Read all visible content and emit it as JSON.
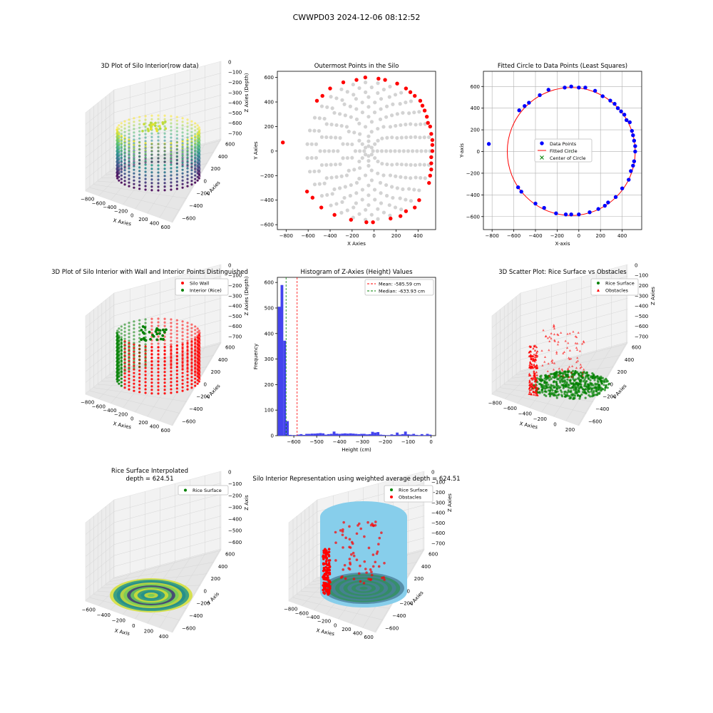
{
  "suptitle": "CWWPD03 2024-12-06 08:12:52",
  "panels": {
    "p1": {
      "title": "3D Plot of Silo Interior(row data)",
      "xlabel": "X Axies",
      "ylabel": "Y Axies",
      "zlabel": "Z Axies (Depth)",
      "xticks": [
        "−800",
        "−600",
        "−400",
        "−200",
        "0",
        "200",
        "400",
        "600"
      ],
      "yticks": [
        "600",
        "400",
        "200",
        "0",
        "−200",
        "−400",
        "−600"
      ],
      "zticks": [
        "0",
        "−100",
        "−200",
        "−300",
        "−400",
        "−500",
        "−600",
        "−700"
      ]
    },
    "p2": {
      "title": "Outermost Points in the Silo",
      "xlabel": "X Axies",
      "ylabel": "Y Axies",
      "xticks": [
        "−800",
        "−600",
        "−400",
        "−200",
        "0",
        "200",
        "400"
      ],
      "yticks": [
        "600",
        "400",
        "200",
        "0",
        "−200",
        "−400",
        "−600"
      ]
    },
    "p3": {
      "title": "Fitted Circle to Data Points (Least Squares)",
      "xlabel": "X-axis",
      "ylabel": "Y-axis",
      "xticks": [
        "−800",
        "−600",
        "−400",
        "−200",
        "0",
        "200",
        "400"
      ],
      "yticks": [
        "600",
        "400",
        "200",
        "0",
        "−200",
        "−400",
        "−600"
      ],
      "legend": [
        "Data Points",
        "Fitted Circle",
        "Center of Circle"
      ]
    },
    "p4": {
      "title": "3D Plot of Silo Interior with Wall and Interior Points Distinguished",
      "xlabel": "X Axies",
      "ylabel": "Y Axies",
      "zlabel": "Z Axies (Depth)",
      "xticks": [
        "−800",
        "−600",
        "−400",
        "−200",
        "0",
        "200",
        "400",
        "600"
      ],
      "yticks": [
        "600",
        "400",
        "200",
        "0",
        "−200",
        "−400",
        "−600"
      ],
      "zticks": [
        "0",
        "−100",
        "−200",
        "−300",
        "−400",
        "−500",
        "−600",
        "−700"
      ],
      "legend": [
        "Silo Wall",
        "Interior (Rice)"
      ]
    },
    "p5": {
      "title": "Histogram of Z-Axies (Height) Values",
      "xlabel": "Height (cm)",
      "ylabel": "Frequency",
      "xticks": [
        "−600",
        "−500",
        "−400",
        "−300",
        "−200",
        "−100",
        "0"
      ],
      "yticks": [
        "0",
        "100",
        "200",
        "300",
        "400",
        "500",
        "600"
      ],
      "legend": [
        "Mean: -585.59 cm",
        "Median: -633.93 cm"
      ]
    },
    "p6": {
      "title": "3D Scatter Plot: Rice Surface vs Obstacles",
      "xlabel": "X Axies",
      "ylabel": "Y Axies",
      "zlabel": "Z Axies",
      "xticks": [
        "−800",
        "−600",
        "−400",
        "−200",
        "0",
        "200"
      ],
      "yticks": [
        "600",
        "400",
        "200",
        "0",
        "−200",
        "−400",
        "−600"
      ],
      "zticks": [
        "0",
        "−100",
        "−200",
        "−300",
        "−400",
        "−500",
        "−600",
        "−700"
      ],
      "legend": [
        "Rice Surface",
        "Obstacles"
      ]
    },
    "p7": {
      "title": "Rice Surface Interpolated",
      "subtitle": "depth = 624.51",
      "xlabel": "X Axis",
      "ylabel": "Y Axis",
      "zlabel": "Z Axis",
      "xticks": [
        "−600",
        "−400",
        "−200",
        "0",
        "200",
        "400"
      ],
      "yticks": [
        "600",
        "400",
        "200",
        "0",
        "−200",
        "−400",
        "−600"
      ],
      "zticks": [
        "0",
        "−100",
        "−200",
        "−300",
        "−400",
        "−500",
        "−600"
      ],
      "legend": [
        "Rice Surface"
      ]
    },
    "p8": {
      "title": "Silo Interior Representation using weighted average depth = 624.51",
      "xlabel": "X Axies",
      "ylabel": "Y Axies",
      "zlabel": "Z Axies",
      "xticks": [
        "−800",
        "−600",
        "−400",
        "−200",
        "0",
        "200",
        "400",
        "600"
      ],
      "yticks": [
        "600",
        "400",
        "200",
        "0",
        "−200",
        "−400",
        "−600"
      ],
      "zticks": [
        "0",
        "−100",
        "−200",
        "−300",
        "−400",
        "−500",
        "−600",
        "−700"
      ],
      "legend": [
        "Rice Surface",
        "Obstacles"
      ]
    }
  },
  "colors": {
    "wall": "#ff0000",
    "rice": "#008000",
    "outer": "#ff0000",
    "inner": "#d3d3d3",
    "data_points": "#0000ff",
    "fit_circle": "#ff0000",
    "center": "#008000",
    "hist": "#4444ee",
    "silo_fill": "#87ceeb"
  },
  "chart_data": [
    {
      "type": "scatter",
      "panel": "p2",
      "xlim": [
        -880,
        560
      ],
      "ylim": [
        -640,
        650
      ],
      "outermost_points": [
        [
          -830,
          70
        ],
        [
          -610,
          -330
        ],
        [
          -560,
          -380
        ],
        [
          -520,
          410
        ],
        [
          -480,
          -460
        ],
        [
          -470,
          450
        ],
        [
          -400,
          510
        ],
        [
          -360,
          -520
        ],
        [
          -280,
          560
        ],
        [
          -210,
          -560
        ],
        [
          -160,
          580
        ],
        [
          -80,
          600
        ],
        [
          -70,
          -580
        ],
        [
          -10,
          -580
        ],
        [
          40,
          590
        ],
        [
          100,
          580
        ],
        [
          150,
          -550
        ],
        [
          210,
          550
        ],
        [
          240,
          -530
        ],
        [
          290,
          -490
        ],
        [
          290,
          510
        ],
        [
          330,
          480
        ],
        [
          370,
          -460
        ],
        [
          370,
          450
        ],
        [
          410,
          -400
        ],
        [
          420,
          410
        ],
        [
          440,
          370
        ],
        [
          460,
          330
        ],
        [
          480,
          280
        ],
        [
          490,
          230
        ],
        [
          500,
          -260
        ],
        [
          510,
          200
        ],
        [
          510,
          -200
        ],
        [
          520,
          140
        ],
        [
          530,
          90
        ],
        [
          530,
          50
        ],
        [
          530,
          0
        ],
        [
          520,
          -50
        ],
        [
          520,
          -100
        ],
        [
          520,
          -150
        ]
      ],
      "interior_center": [
        -50,
        0
      ],
      "interior_radius": 560
    },
    {
      "type": "scatter",
      "panel": "p3",
      "xlim": [
        -880,
        580
      ],
      "ylim": [
        -720,
        740
      ],
      "data_points": [
        [
          -830,
          70
        ],
        [
          -560,
          -330
        ],
        [
          -530,
          -370
        ],
        [
          -550,
          380
        ],
        [
          -500,
          420
        ],
        [
          -460,
          450
        ],
        [
          -400,
          -480
        ],
        [
          -360,
          520
        ],
        [
          -320,
          -520
        ],
        [
          -280,
          570
        ],
        [
          -210,
          -570
        ],
        [
          -130,
          590
        ],
        [
          -120,
          -580
        ],
        [
          -70,
          600
        ],
        [
          -70,
          -580
        ],
        [
          0,
          590
        ],
        [
          0,
          -580
        ],
        [
          60,
          590
        ],
        [
          100,
          -560
        ],
        [
          150,
          560
        ],
        [
          180,
          -530
        ],
        [
          220,
          510
        ],
        [
          240,
          -500
        ],
        [
          270,
          -470
        ],
        [
          290,
          470
        ],
        [
          340,
          -420
        ],
        [
          330,
          440
        ],
        [
          360,
          400
        ],
        [
          400,
          -340
        ],
        [
          390,
          370
        ],
        [
          420,
          340
        ],
        [
          440,
          290
        ],
        [
          460,
          -260
        ],
        [
          470,
          270
        ],
        [
          480,
          -180
        ],
        [
          490,
          190
        ],
        [
          500,
          -130
        ],
        [
          500,
          150
        ],
        [
          510,
          -90
        ],
        [
          510,
          100
        ],
        [
          520,
          50
        ],
        [
          520,
          0
        ]
      ],
      "circle": {
        "cx": -70,
        "cy": 0,
        "r": 590
      },
      "center": [
        -70,
        0
      ]
    },
    {
      "type": "bar",
      "panel": "p5",
      "bin_width": 12,
      "xlim": [
        -672,
        20
      ],
      "ylim": [
        0,
        620
      ],
      "bins": [
        [
          -664,
          505
        ],
        [
          -652,
          590
        ],
        [
          -640,
          372
        ],
        [
          -628,
          57
        ],
        [
          -616,
          3
        ],
        [
          -604,
          2
        ],
        [
          -592,
          2
        ],
        [
          -580,
          4
        ],
        [
          -568,
          6
        ],
        [
          -556,
          3
        ],
        [
          -544,
          7
        ],
        [
          -532,
          7
        ],
        [
          -520,
          8
        ],
        [
          -508,
          8
        ],
        [
          -496,
          9
        ],
        [
          -484,
          10
        ],
        [
          -472,
          9
        ],
        [
          -460,
          4
        ],
        [
          -448,
          6
        ],
        [
          -436,
          7
        ],
        [
          -424,
          16
        ],
        [
          -412,
          8
        ],
        [
          -400,
          7
        ],
        [
          -388,
          8
        ],
        [
          -376,
          9
        ],
        [
          -364,
          8
        ],
        [
          -352,
          9
        ],
        [
          -340,
          8
        ],
        [
          -328,
          7
        ],
        [
          -316,
          6
        ],
        [
          -304,
          7
        ],
        [
          -292,
          7
        ],
        [
          -280,
          5
        ],
        [
          -268,
          6
        ],
        [
          -256,
          15
        ],
        [
          -244,
          12
        ],
        [
          -232,
          14
        ],
        [
          -220,
          4
        ],
        [
          -208,
          3
        ],
        [
          -196,
          2
        ],
        [
          -184,
          2
        ],
        [
          -172,
          5
        ],
        [
          -160,
          3
        ],
        [
          -148,
          12
        ],
        [
          -136,
          4
        ],
        [
          -124,
          6
        ],
        [
          -112,
          16
        ],
        [
          -100,
          5
        ],
        [
          -88,
          4
        ],
        [
          -76,
          7
        ],
        [
          -64,
          3
        ],
        [
          -52,
          2
        ],
        [
          -40,
          6
        ],
        [
          -28,
          2
        ],
        [
          -16,
          7
        ],
        [
          -4,
          4
        ]
      ],
      "mean": -585.59,
      "median": -633.93
    }
  ]
}
